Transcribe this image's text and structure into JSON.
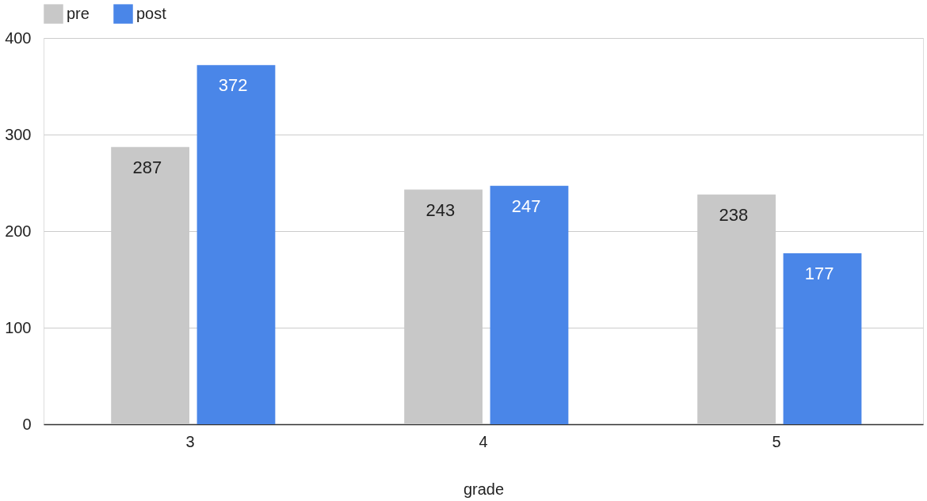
{
  "chart_data": {
    "type": "bar",
    "xlabel": "grade",
    "categories": [
      "3",
      "4",
      "5"
    ],
    "series": [
      {
        "name": "pre",
        "color": "#c8c8c8",
        "values": [
          287,
          243,
          238
        ]
      },
      {
        "name": "post",
        "color": "#4a86e8",
        "values": [
          372,
          247,
          177
        ]
      }
    ],
    "ylim": [
      0,
      400
    ],
    "yticks": [
      0,
      100,
      200,
      300,
      400
    ],
    "grid": "y",
    "legend": "top",
    "data_labels": true
  }
}
